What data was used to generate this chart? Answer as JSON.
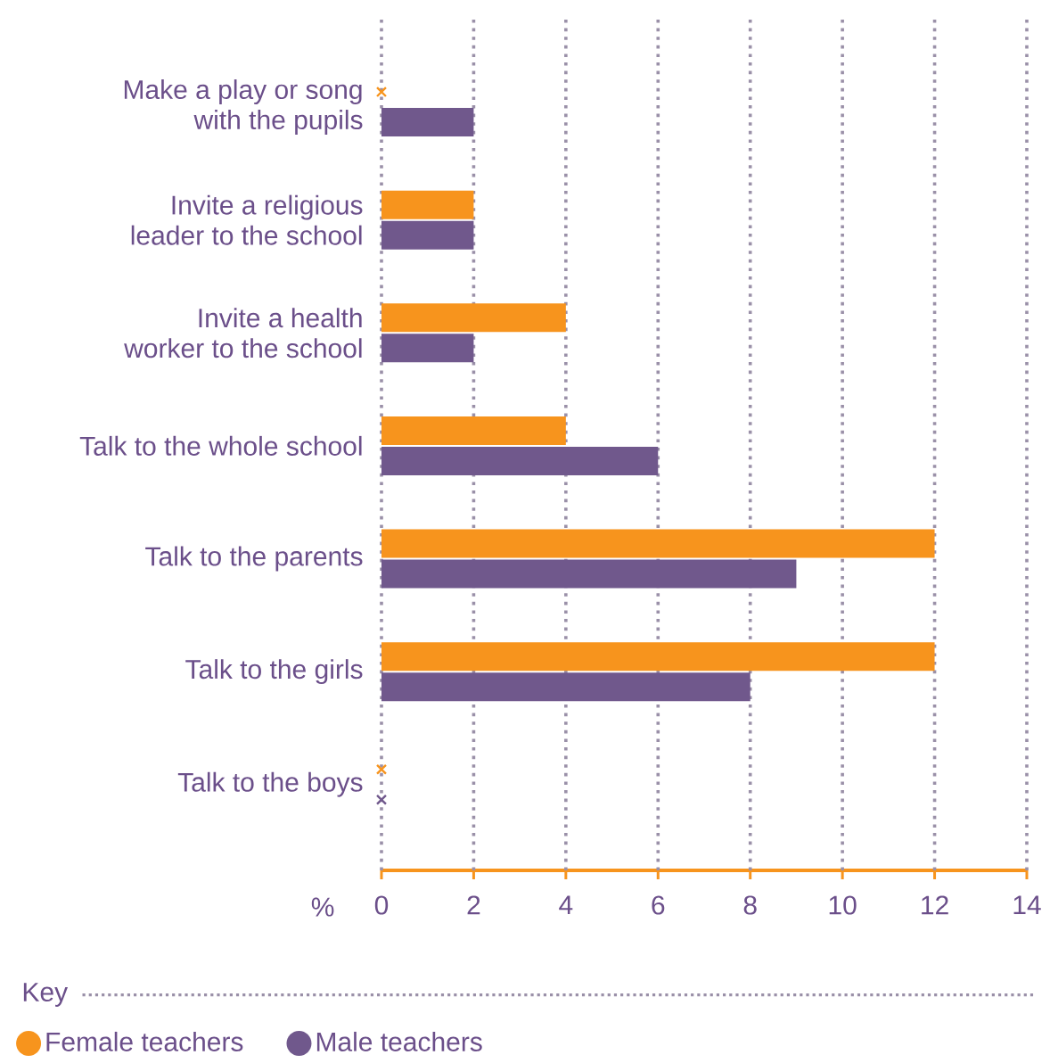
{
  "chart_data": {
    "type": "bar",
    "orientation": "horizontal",
    "xlabel": "%",
    "legend_title": "Key",
    "legend": "bottom",
    "grid": "x",
    "categories": [
      "Make a play or song with the pupils",
      "Invite a religious leader to the school",
      "Invite a health worker to the school",
      "Talk to the whole school",
      "Talk to the parents",
      "Talk to the girls",
      "Talk to the boys"
    ],
    "series": [
      {
        "name": "Female teachers",
        "color": "#f7941d",
        "values": [
          0,
          2,
          4,
          4,
          12,
          12,
          0
        ]
      },
      {
        "name": "Male teachers",
        "color": "#70588c",
        "values": [
          2,
          2,
          2,
          6,
          9,
          8,
          0
        ]
      },
      {
        "type": "scatter",
        "marker": "cross",
        "color": "#f7941d",
        "values": [
          0,
          null,
          null,
          null,
          null,
          null,
          0
        ]
      },
      {
        "type": "scatter",
        "marker": "cross",
        "color": "#70588c",
        "values": [
          null,
          null,
          null,
          null,
          null,
          null,
          0
        ]
      }
    ],
    "xlim": [
      0,
      14
    ],
    "xticks": [
      0,
      2,
      4,
      6,
      8,
      10,
      12,
      14
    ]
  }
}
